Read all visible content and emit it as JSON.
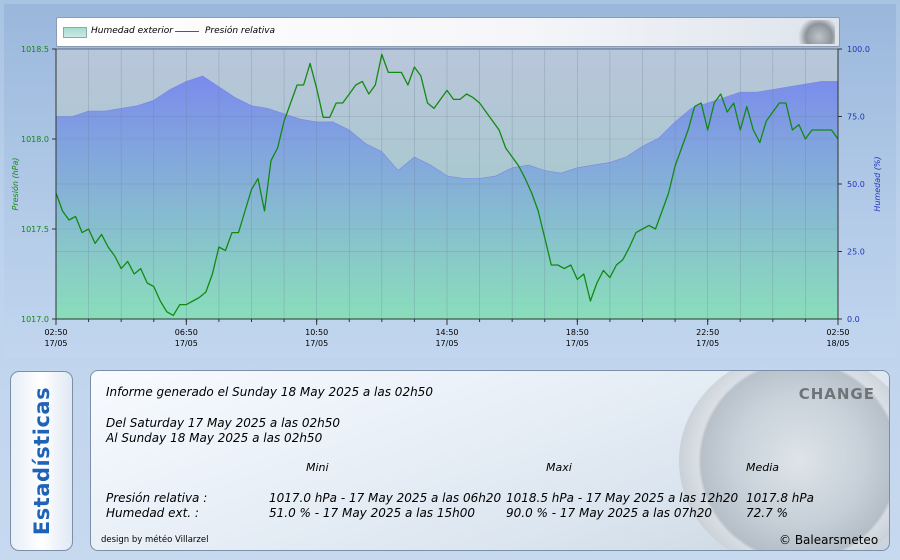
{
  "legend": {
    "humidity": "Humedad exterior",
    "pressure": "Presión relativa"
  },
  "colors": {
    "pressure_line": "#128a12",
    "humidity_fill": "#7b8ef0",
    "plot_bg_bottom": "#96e6b4",
    "left_axis": "#118a11",
    "right_axis": "#2233bb"
  },
  "chart_data": {
    "type": "line",
    "y_left": {
      "label": "Presión (hPa)",
      "range": [
        1017.0,
        1018.5
      ],
      "ticks": [
        "1017.0",
        "1017.5",
        "1018.0",
        "1018.5"
      ],
      "tick_values": [
        1017.0,
        1017.5,
        1018.0,
        1018.5
      ]
    },
    "y_right": {
      "label": "Humedad (%)",
      "range": [
        0,
        100
      ],
      "ticks": [
        "0.0",
        "25.0",
        "50.0",
        "75.0",
        "100.0"
      ],
      "tick_values": [
        0,
        25,
        50,
        75,
        100
      ]
    },
    "x_range_hours": [
      0,
      24
    ],
    "x_ticks": [
      {
        "hour": 0,
        "time": "02:50",
        "date": "17/05"
      },
      {
        "hour": 4,
        "time": "06:50",
        "date": "17/05"
      },
      {
        "hour": 8,
        "time": "10:50",
        "date": "17/05"
      },
      {
        "hour": 12,
        "time": "14:50",
        "date": "17/05"
      },
      {
        "hour": 16,
        "time": "18:50",
        "date": "17/05"
      },
      {
        "hour": 20,
        "time": "22:50",
        "date": "17/05"
      },
      {
        "hour": 24,
        "time": "02:50",
        "date": "18/05"
      }
    ],
    "grid": true,
    "series": [
      {
        "name": "Presión relativa",
        "axis": "left",
        "kind": "line",
        "x": [
          0,
          0.2,
          0.4,
          0.6,
          0.8,
          1.0,
          1.2,
          1.4,
          1.6,
          1.8,
          2.0,
          2.2,
          2.4,
          2.6,
          2.8,
          3.0,
          3.2,
          3.4,
          3.6,
          3.8,
          4.0,
          4.2,
          4.4,
          4.6,
          4.8,
          5.0,
          5.2,
          5.4,
          5.6,
          5.8,
          6.0,
          6.2,
          6.4,
          6.6,
          6.8,
          7.0,
          7.2,
          7.4,
          7.6,
          7.8,
          8.0,
          8.2,
          8.4,
          8.6,
          8.8,
          9.0,
          9.2,
          9.4,
          9.6,
          9.8,
          10.0,
          10.2,
          10.4,
          10.6,
          10.8,
          11.0,
          11.2,
          11.4,
          11.6,
          11.8,
          12.0,
          12.2,
          12.4,
          12.6,
          12.8,
          13.0,
          13.2,
          13.4,
          13.6,
          13.8,
          14.0,
          14.2,
          14.4,
          14.6,
          14.8,
          15.0,
          15.2,
          15.4,
          15.6,
          15.8,
          16.0,
          16.2,
          16.4,
          16.6,
          16.8,
          17.0,
          17.2,
          17.4,
          17.6,
          17.8,
          18.0,
          18.2,
          18.4,
          18.6,
          18.8,
          19.0,
          19.2,
          19.4,
          19.6,
          19.8,
          20.0,
          20.2,
          20.4,
          20.6,
          20.8,
          21.0,
          21.2,
          21.4,
          21.6,
          21.8,
          22.0,
          22.2,
          22.4,
          22.6,
          22.8,
          23.0,
          23.2,
          23.4,
          23.6,
          23.8,
          24.0
        ],
        "values": [
          1017.7,
          1017.6,
          1017.55,
          1017.57,
          1017.48,
          1017.5,
          1017.42,
          1017.47,
          1017.4,
          1017.35,
          1017.28,
          1017.32,
          1017.25,
          1017.28,
          1017.2,
          1017.18,
          1017.1,
          1017.04,
          1017.02,
          1017.08,
          1017.08,
          1017.1,
          1017.12,
          1017.15,
          1017.25,
          1017.4,
          1017.38,
          1017.48,
          1017.48,
          1017.6,
          1017.72,
          1017.78,
          1017.6,
          1017.88,
          1017.95,
          1018.1,
          1018.2,
          1018.3,
          1018.3,
          1018.42,
          1018.28,
          1018.12,
          1018.12,
          1018.2,
          1018.2,
          1018.25,
          1018.3,
          1018.32,
          1018.25,
          1018.3,
          1018.47,
          1018.37,
          1018.37,
          1018.37,
          1018.3,
          1018.4,
          1018.35,
          1018.2,
          1018.17,
          1018.22,
          1018.27,
          1018.22,
          1018.22,
          1018.25,
          1018.23,
          1018.2,
          1018.15,
          1018.1,
          1018.05,
          1017.95,
          1017.9,
          1017.85,
          1017.78,
          1017.7,
          1017.6,
          1017.45,
          1017.3,
          1017.3,
          1017.28,
          1017.3,
          1017.22,
          1017.25,
          1017.1,
          1017.2,
          1017.27,
          1017.23,
          1017.3,
          1017.33,
          1017.4,
          1017.48,
          1017.5,
          1017.52,
          1017.5,
          1017.6,
          1017.7,
          1017.85,
          1017.95,
          1018.05,
          1018.18,
          1018.2,
          1018.05,
          1018.2,
          1018.25,
          1018.15,
          1018.2,
          1018.05,
          1018.18,
          1018.05,
          1017.98,
          1018.1,
          1018.15,
          1018.2,
          1018.2,
          1018.05,
          1018.08,
          1018.0,
          1018.05,
          1018.05,
          1018.05,
          1018.05,
          1018.0
        ]
      },
      {
        "name": "Humedad exterior",
        "axis": "right",
        "kind": "area",
        "x": [
          0,
          0.5,
          1,
          1.5,
          2,
          2.5,
          3,
          3.5,
          4,
          4.5,
          5,
          5.5,
          6,
          6.5,
          7,
          7.5,
          8,
          8.5,
          9,
          9.5,
          10,
          10.5,
          11,
          11.5,
          12,
          12.5,
          13,
          13.5,
          14,
          14.5,
          15,
          15.5,
          16,
          16.5,
          17,
          17.5,
          18,
          18.5,
          19,
          19.5,
          20,
          20.5,
          21,
          21.5,
          22,
          22.5,
          23,
          23.5,
          24
        ],
        "values": [
          75,
          75,
          77,
          77,
          78,
          79,
          81,
          85,
          88,
          90,
          86,
          82,
          79,
          78,
          76,
          74,
          73,
          73,
          70,
          65,
          62,
          55,
          60,
          57,
          53,
          52,
          52,
          53,
          56,
          57,
          55,
          54,
          56,
          57,
          58,
          60,
          64,
          67,
          73,
          78,
          80,
          82,
          84,
          84,
          85,
          86,
          87,
          88,
          88
        ]
      }
    ]
  },
  "stats": {
    "tab_label": "Estadísticas",
    "report_line": "Informe generado el Sunday 18 May 2025 a las 02h50",
    "from_line": "Del Saturday 17 May 2025 a las 02h50",
    "to_line": "Al Sunday 18 May 2025 a las 02h50",
    "headers": {
      "mini": "Mini",
      "maxi": "Maxi",
      "media": "Media"
    },
    "rows": [
      {
        "label": "Presión relativa :",
        "mini": "1017.0 hPa - 17 May 2025 a las 06h20",
        "maxi": "1018.5 hPa - 17 May 2025 a las 12h20",
        "media": "1017.8 hPa"
      },
      {
        "label": "Humedad ext. :",
        "mini": "51.0 % - 17 May 2025 a las 15h00",
        "maxi": "90.0 % - 17 May 2025 a las 07h20",
        "media": "72.7 %"
      }
    ],
    "gauge_word": "CHANGE",
    "credit": "design by météo Villarzel",
    "copyright": "© Balearsmeteo"
  }
}
